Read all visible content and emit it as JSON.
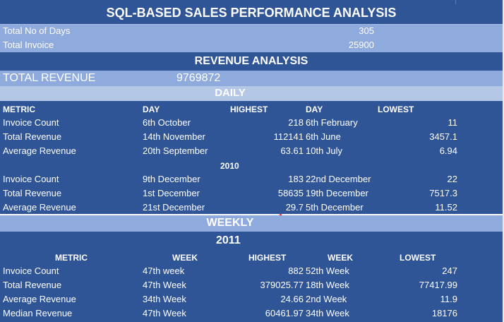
{
  "title": "SQL-BASED SALES PERFORMANCE ANALYSIS",
  "summary": [
    {
      "label": "Total No of Days",
      "value": "305"
    },
    {
      "label": "Total Invoice",
      "value": "25900"
    }
  ],
  "revenue_analysis": {
    "heading": "REVENUE ANALYSIS",
    "total_label": "TOTAL REVENUE",
    "total_value": "9769872"
  },
  "daily": {
    "heading": "DAILY",
    "columns": {
      "metric": "METRIC",
      "day1": "DAY",
      "highest": "HIGHEST",
      "day2": "DAY",
      "lowest": "LOWEST"
    },
    "rows_2011": [
      {
        "metric": "Invoice Count",
        "high_day": "6th October",
        "highest": "218",
        "low_day": "6th February",
        "lowest": "11"
      },
      {
        "metric": "Total Revenue",
        "high_day": "14th November",
        "highest": "112141",
        "low_day": "6th June",
        "lowest": "3457.1"
      },
      {
        "metric": "Average Revenue",
        "high_day": "20th September",
        "highest": "63.61",
        "low_day": "10th July",
        "lowest": "6.94"
      }
    ],
    "year_2010": "2010",
    "rows_2010": [
      {
        "metric": "Invoice Count",
        "high_day": "9th December",
        "highest": "183",
        "low_day": "22nd December",
        "lowest": "22"
      },
      {
        "metric": "Total Revenue",
        "high_day": "1st December",
        "highest": "58635",
        "low_day": "19th December",
        "lowest": "7517.3"
      },
      {
        "metric": "Average Revenue",
        "high_day": "21st December",
        "highest": "29.7",
        "low_day": "5th December",
        "lowest": "11.52"
      }
    ]
  },
  "weekly": {
    "heading": "WEEKLY",
    "year": "2011",
    "columns": {
      "metric": "METRIC",
      "week1": "WEEK",
      "highest": "HIGHEST",
      "week2": "WEEK",
      "lowest": "LOWEST"
    },
    "rows": [
      {
        "metric": "Invoice Count",
        "high_week": "47th week",
        "highest": "882",
        "low_week": "52th Week",
        "lowest": "247"
      },
      {
        "metric": "Total Revenue",
        "high_week": "47th Week",
        "highest": "379025.77",
        "low_week": "18th Week",
        "lowest": "77417.99"
      },
      {
        "metric": "Average Revenue",
        "high_week": "34th Week",
        "highest": "24.66",
        "low_week": "2nd Week",
        "lowest": "11.9"
      },
      {
        "metric": "Median Revenue",
        "high_week": "47th Week",
        "highest": "60461.97",
        "low_week": "34th Week",
        "lowest": "18176"
      }
    ]
  },
  "colors": {
    "dark_band": "#2f5597",
    "mid_band": "#8faadc",
    "light_band": "#b4c7e7"
  }
}
